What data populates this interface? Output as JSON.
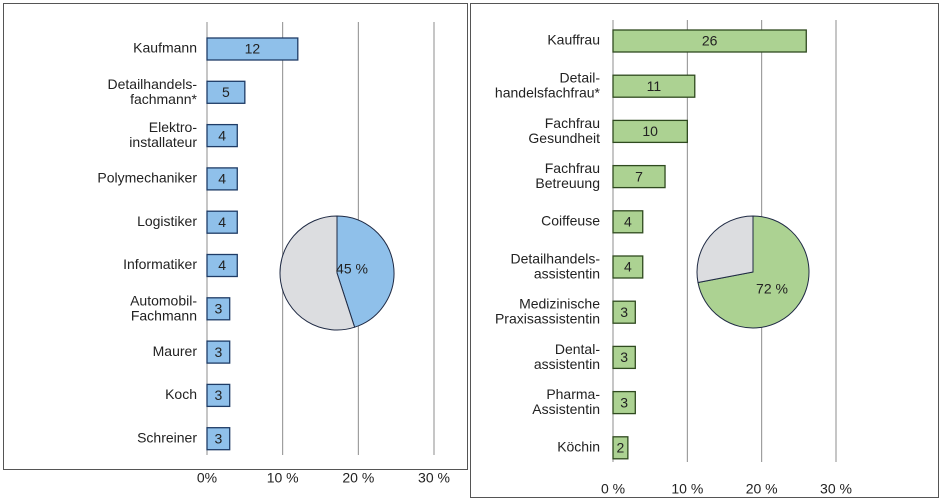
{
  "chart_data": [
    {
      "type": "bar",
      "orientation": "horizontal",
      "categories": [
        "Kaufmann",
        "Detailhandels-\nfachmann*",
        "Elektro-\ninstallateur",
        "Polymechaniker",
        "Logistiker",
        "Informatiker",
        "Automobil-\nFachmann",
        "Maurer",
        "Koch",
        "Schreiner"
      ],
      "values": [
        12,
        5,
        4,
        4,
        4,
        4,
        3,
        3,
        3,
        3
      ],
      "color": "#8fc0ea",
      "edge_color": "#1f3c66",
      "xlim": [
        0,
        30
      ],
      "xticks": [
        {
          "value": 0,
          "label": "0%"
        },
        {
          "value": 10,
          "label": "10 %"
        },
        {
          "value": 20,
          "label": "20 %"
        },
        {
          "value": 30,
          "label": "30 %"
        }
      ],
      "grid": true,
      "inset": {
        "type": "pie",
        "values": [
          45,
          55
        ],
        "value_labels": [
          "45 %",
          null
        ],
        "colors": [
          "#8fc0ea",
          "#dcdde0"
        ]
      }
    },
    {
      "type": "bar",
      "orientation": "horizontal",
      "categories": [
        "Kauffrau",
        "Detail-\nhandelsfachfrau*",
        "Fachfrau\nGesundheit",
        "Fachfrau\nBetreuung",
        "Coiffeuse",
        "Detailhandels-\nassistentin",
        "Medizinische\nPraxisassistentin",
        "Dental-\nassistentin",
        "Pharma-\nAssistentin",
        "Köchin"
      ],
      "values": [
        26,
        11,
        10,
        7,
        4,
        4,
        3,
        3,
        3,
        2
      ],
      "color": "#acd292",
      "edge_color": "#2f4a1f",
      "xlim": [
        0,
        30
      ],
      "xticks": [
        {
          "value": 0,
          "label": "0 %"
        },
        {
          "value": 10,
          "label": "10 %"
        },
        {
          "value": 20,
          "label": "20 %"
        },
        {
          "value": 30,
          "label": "30 %"
        }
      ],
      "grid": true,
      "inset": {
        "type": "pie",
        "values": [
          72,
          28
        ],
        "value_labels": [
          "72 %",
          null
        ],
        "colors": [
          "#acd292",
          "#dcdde0"
        ]
      }
    }
  ]
}
